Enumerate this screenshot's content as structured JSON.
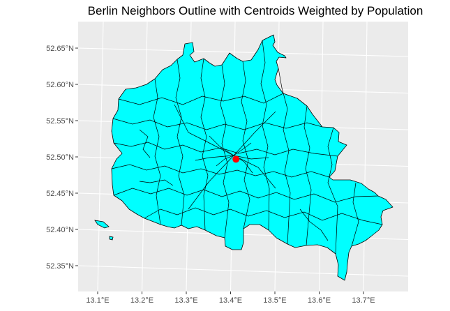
{
  "title": "Berlin Neighbors Outline with Centroids Weighted by Population",
  "colors": {
    "panel_bg": "#ebebeb",
    "grid_line": "#ffffff",
    "fill": "#00ffff",
    "border": "#000000",
    "centroid": "#ff0000",
    "tick_text": "#4d4d4d"
  },
  "chart_data": {
    "type": "map",
    "title": "Berlin Neighbors Outline with Centroids Weighted by Population",
    "xlabel": "",
    "ylabel": "",
    "projection": "lat-long (graticule slightly rotated)",
    "grid": true,
    "legend": "none",
    "x_ticks": [
      {
        "value": 13.1,
        "label": "13.1°E"
      },
      {
        "value": 13.2,
        "label": "13.2°E"
      },
      {
        "value": 13.3,
        "label": "13.3°E"
      },
      {
        "value": 13.4,
        "label": "13.4°E"
      },
      {
        "value": 13.5,
        "label": "13.5°E"
      },
      {
        "value": 13.6,
        "label": "13.6°E"
      },
      {
        "value": 13.7,
        "label": "13.7°E"
      }
    ],
    "y_ticks": [
      {
        "value": 52.35,
        "label": "52.35°N"
      },
      {
        "value": 52.4,
        "label": "52.40°N"
      },
      {
        "value": 52.45,
        "label": "52.45°N"
      },
      {
        "value": 52.5,
        "label": "52.50°N"
      },
      {
        "value": 52.55,
        "label": "52.55°N"
      },
      {
        "value": 52.6,
        "label": "52.60°N"
      },
      {
        "value": 52.65,
        "label": "52.65°N"
      }
    ],
    "xlim": [
      13.05,
      13.78
    ],
    "ylim": [
      52.31,
      52.685
    ],
    "region_fill": "#00ffff",
    "centroid": {
      "lon": 13.407,
      "lat": 52.503,
      "color": "#ff0000"
    }
  }
}
